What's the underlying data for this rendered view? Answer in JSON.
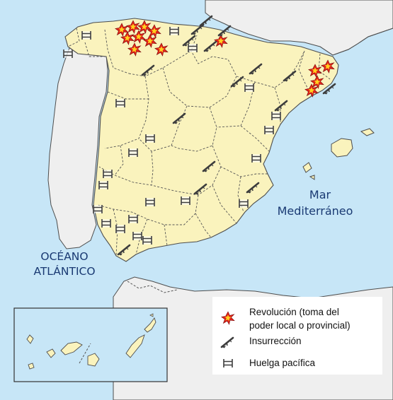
{
  "map": {
    "sea_labels": {
      "mediterranean_line1": "Mar",
      "mediterranean_line2": "Mediterráneo",
      "atlantic_line1": "OCÉANO",
      "atlantic_line2": "ATLÁNTICO"
    },
    "colors": {
      "sea": "#c7e6f7",
      "spain": "#faf3bd",
      "foreign_land": "#efefef",
      "coast_stroke": "#4d4d4d",
      "sea_label": "#1a3a73"
    },
    "legend": {
      "items": [
        {
          "icon": "revolution-explosion-icon",
          "line1": "Revolución (toma del",
          "line2": "poder local o provincial)"
        },
        {
          "icon": "rifle-icon",
          "line1": "Insurrección",
          "line2": ""
        },
        {
          "icon": "strike-fence-icon",
          "line1": "Huelga pacífica",
          "line2": ""
        }
      ]
    }
  }
}
